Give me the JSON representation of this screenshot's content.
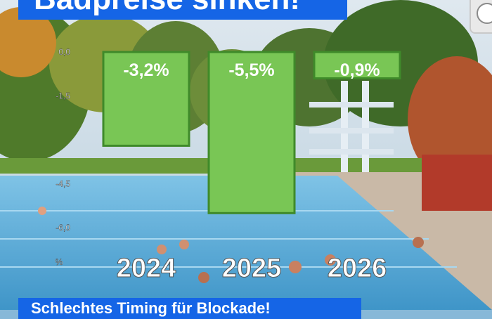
{
  "header": {
    "title": "Badpreise sinken!"
  },
  "footer": {
    "text": "Schlechtes Timing für Blockade!"
  },
  "chart_data": {
    "type": "bar",
    "categories": [
      "2024",
      "2025",
      "2026"
    ],
    "values": [
      -3.2,
      -5.5,
      -0.9
    ],
    "value_labels": [
      "-3,2%",
      "-5,5%",
      "-0,9%"
    ],
    "ylabel": "%",
    "ylim": [
      -6.5,
      0
    ],
    "yticks": [
      0,
      -1.5,
      -4.5,
      -6.0
    ],
    "ytick_labels": [
      "0,0",
      "-1,5",
      "-4,5",
      "-6,0"
    ],
    "bar_color": "#79c655",
    "bar_edge_color": "#3f8a2a"
  }
}
